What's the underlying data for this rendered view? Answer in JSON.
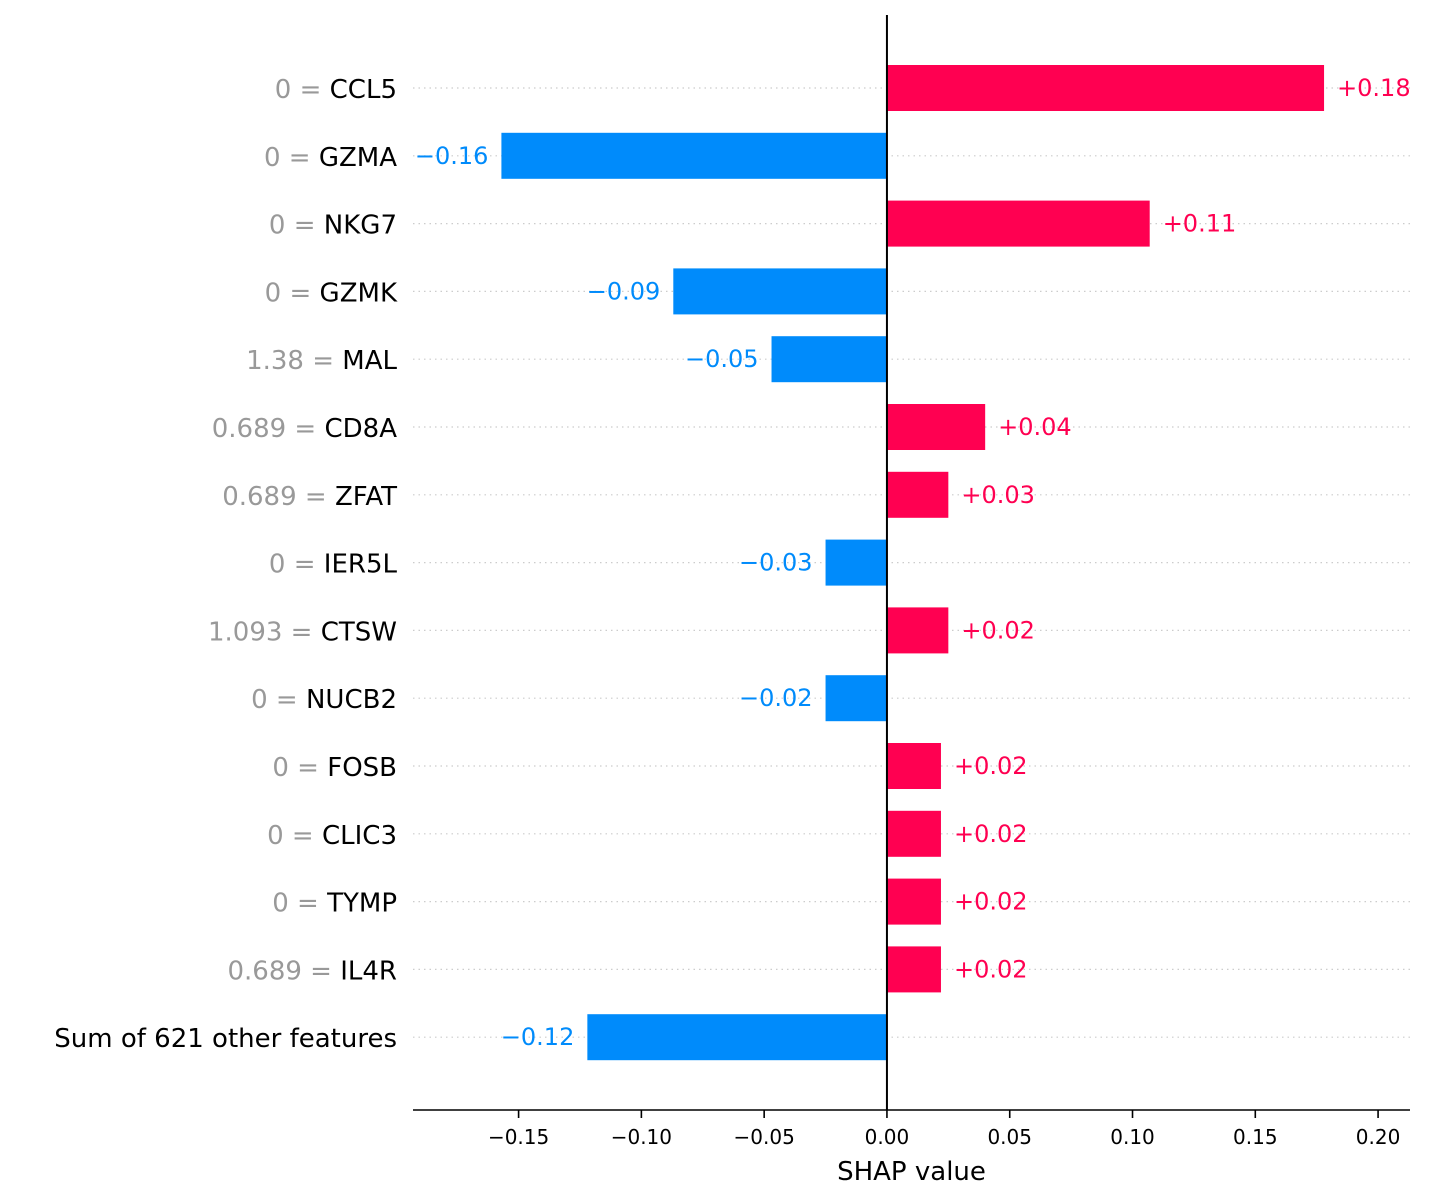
{
  "chart_data": {
    "type": "bar",
    "orientation": "horizontal",
    "xlabel": "SHAP value",
    "xlim": [
      -0.193,
      0.213
    ],
    "xticks": [
      {
        "value": -0.15,
        "label": "−0.15"
      },
      {
        "value": -0.1,
        "label": "−0.10"
      },
      {
        "value": -0.05,
        "label": "−0.05"
      },
      {
        "value": 0.0,
        "label": "0.00"
      },
      {
        "value": 0.05,
        "label": "0.05"
      },
      {
        "value": 0.1,
        "label": "0.10"
      },
      {
        "value": 0.15,
        "label": "0.15"
      },
      {
        "value": 0.2,
        "label": "0.20"
      }
    ],
    "colors": {
      "positive": "#ff0051",
      "negative": "#008bfb"
    },
    "features": [
      {
        "value": "0",
        "name": "CCL5",
        "shap": 0.178,
        "label": "+0.18"
      },
      {
        "value": "0",
        "name": "GZMA",
        "shap": -0.157,
        "label": "−0.16"
      },
      {
        "value": "0",
        "name": "NKG7",
        "shap": 0.107,
        "label": "+0.11"
      },
      {
        "value": "0",
        "name": "GZMK",
        "shap": -0.087,
        "label": "−0.09"
      },
      {
        "value": "1.38",
        "name": "MAL",
        "shap": -0.047,
        "label": "−0.05"
      },
      {
        "value": "0.689",
        "name": "CD8A",
        "shap": 0.04,
        "label": "+0.04"
      },
      {
        "value": "0.689",
        "name": "ZFAT",
        "shap": 0.025,
        "label": "+0.03"
      },
      {
        "value": "0",
        "name": "IER5L",
        "shap": -0.025,
        "label": "−0.03"
      },
      {
        "value": "1.093",
        "name": "CTSW",
        "shap": 0.025,
        "label": "+0.02"
      },
      {
        "value": "0",
        "name": "NUCB2",
        "shap": -0.025,
        "label": "−0.02"
      },
      {
        "value": "0",
        "name": "FOSB",
        "shap": 0.022,
        "label": "+0.02"
      },
      {
        "value": "0",
        "name": "CLIC3",
        "shap": 0.022,
        "label": "+0.02"
      },
      {
        "value": "0",
        "name": "TYMP",
        "shap": 0.022,
        "label": "+0.02"
      },
      {
        "value": "0.689",
        "name": "IL4R",
        "shap": 0.022,
        "label": "+0.02"
      },
      {
        "value": "",
        "name": "Sum of 621 other features",
        "shap": -0.122,
        "label": "−0.12"
      }
    ]
  }
}
